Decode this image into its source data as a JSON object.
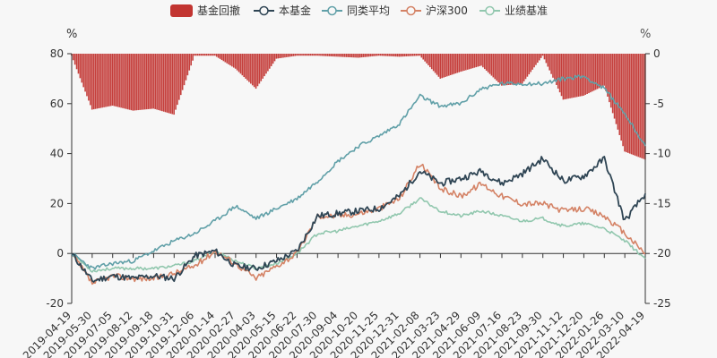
{
  "chart_data": {
    "type": "line",
    "left_unit": "%",
    "right_unit": "%",
    "ylim": [
      -20,
      80
    ],
    "y_ticks": [
      -20,
      0,
      20,
      40,
      60,
      80
    ],
    "y2lim": [
      -25,
      0
    ],
    "y2_ticks": [
      -25,
      -20,
      -15,
      -10,
      -5,
      0
    ],
    "x_tick_labels": [
      "2019-04-19",
      "2019-05-30",
      "2019-07-05",
      "2019-08-12",
      "2019-09-18",
      "2019-10-31",
      "2019-12-06",
      "2020-01-14",
      "2020-02-27",
      "2020-04-03",
      "2020-05-15",
      "2020-06-22",
      "2020-07-30",
      "2020-09-04",
      "2020-10-20",
      "2020-11-25",
      "2020-12-31",
      "2021-02-08",
      "2021-03-23",
      "2021-04-29",
      "2021-06-09",
      "2021-07-16",
      "2021-08-23",
      "2021-09-30",
      "2021-11-12",
      "2021-12-20",
      "2022-01-26",
      "2022-03-10",
      "2022-04-19"
    ],
    "x": [
      "2019-04-19",
      "2019-05-30",
      "2019-07-05",
      "2019-08-12",
      "2019-09-18",
      "2019-10-31",
      "2019-12-06",
      "2020-01-14",
      "2020-02-27",
      "2020-04-03",
      "2020-05-15",
      "2020-06-22",
      "2020-07-30",
      "2020-09-04",
      "2020-10-20",
      "2020-11-25",
      "2020-12-31",
      "2021-02-08",
      "2021-03-23",
      "2021-04-29",
      "2021-06-09",
      "2021-07-16",
      "2021-08-23",
      "2021-09-30",
      "2021-11-12",
      "2021-12-20",
      "2022-01-26",
      "2022-03-10",
      "2022-04-19"
    ],
    "legend": [
      {
        "name": "基金回撤",
        "color": "#c23531",
        "kind": "bar"
      },
      {
        "name": "本基金",
        "color": "#2f4554",
        "kind": "line"
      },
      {
        "name": "同类平均",
        "color": "#61a0a8",
        "kind": "line"
      },
      {
        "name": "沪深300",
        "color": "#d48265",
        "kind": "line"
      },
      {
        "name": "业绩基准",
        "color": "#91c7ae",
        "kind": "line"
      }
    ],
    "series": [
      {
        "name": "本基金",
        "axis": "left",
        "values": [
          0,
          -11,
          -9,
          -10,
          -9,
          -10,
          -1,
          1,
          -5,
          -6,
          -3,
          1,
          15,
          16,
          17,
          18,
          23,
          33,
          28,
          30,
          33,
          28,
          32,
          38,
          29,
          31,
          38,
          13,
          24
        ]
      },
      {
        "name": "同类平均",
        "axis": "left",
        "values": [
          0,
          -6,
          -4,
          -3,
          1,
          5,
          8,
          13,
          19,
          14,
          18,
          22,
          29,
          37,
          43,
          47,
          52,
          63,
          59,
          60,
          66,
          68,
          68,
          68,
          70,
          71,
          66,
          56,
          43
        ]
      },
      {
        "name": "沪深300",
        "axis": "left",
        "values": [
          0,
          -12,
          -9,
          -10,
          -10,
          -8,
          -5,
          1,
          -4,
          -10,
          -5,
          0,
          15,
          15,
          16,
          18,
          22,
          36,
          26,
          23,
          28,
          23,
          20,
          20,
          17,
          18,
          15,
          8,
          0
        ]
      },
      {
        "name": "业绩基准",
        "axis": "left",
        "values": [
          0,
          -7,
          -6,
          -6,
          -6,
          -5,
          -3,
          1,
          -3,
          -6,
          -4,
          0,
          8,
          9,
          11,
          13,
          16,
          22,
          17,
          15,
          17,
          15,
          13,
          14,
          11,
          12,
          10,
          5,
          -2
        ]
      },
      {
        "name": "基金回撤",
        "axis": "right",
        "type": "bar",
        "values": [
          -0.2,
          -5.6,
          -5.2,
          -5.7,
          -5.5,
          -6.1,
          -0.2,
          -0.2,
          -1.5,
          -3.5,
          -0.5,
          -0.2,
          -0.2,
          -0.3,
          -0.4,
          -0.2,
          -0.3,
          -0.2,
          -2.5,
          -1.8,
          -1.2,
          -3.2,
          -3.0,
          -0.2,
          -4.6,
          -4.2,
          -3.2,
          -9.8,
          -10.6
        ]
      }
    ]
  }
}
